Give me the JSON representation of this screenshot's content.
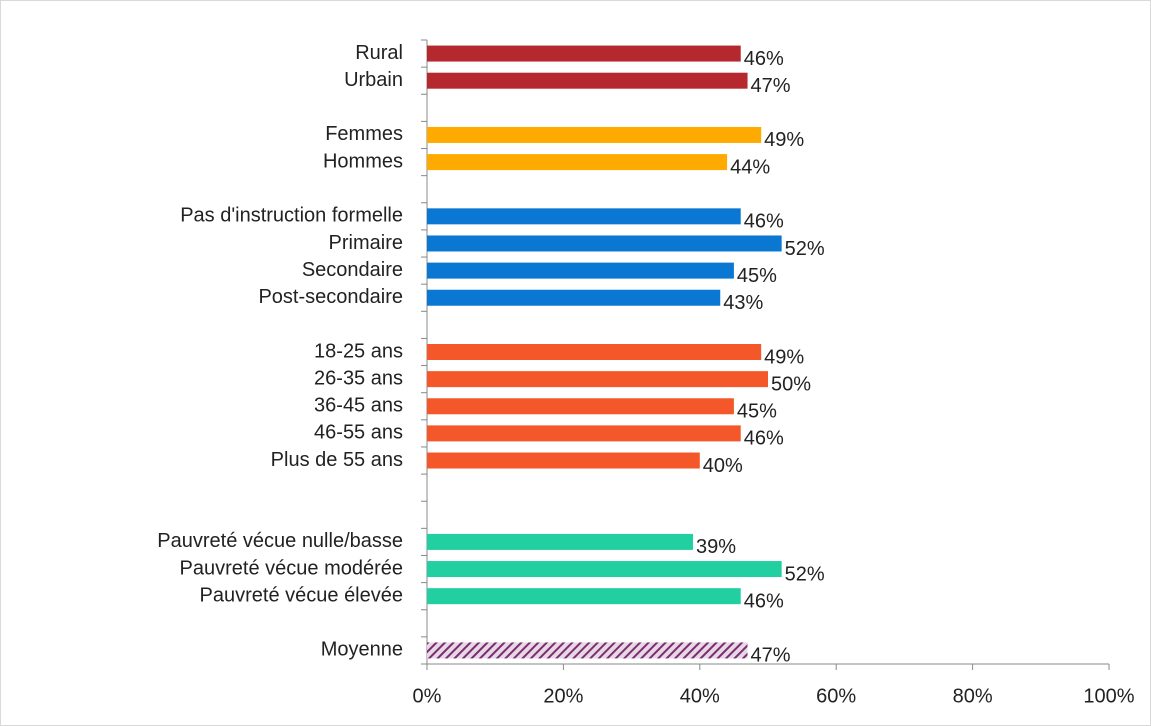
{
  "chart_data": {
    "type": "barh",
    "categories": [
      "Rural",
      "Urbain",
      null,
      "Femmes",
      "Hommes",
      null,
      "Pas d'instruction formelle",
      "Primaire",
      "Secondaire",
      "Post-secondaire",
      null,
      "18-25 ans",
      "26-35 ans",
      "36-45 ans",
      "46-55 ans",
      "Plus de 55 ans",
      null,
      null,
      "Pauvreté vécue nulle/basse",
      "Pauvreté vécue modérée",
      "Pauvreté vécue élevée",
      null,
      "Moyenne"
    ],
    "values": [
      46,
      47,
      null,
      49,
      44,
      null,
      46,
      52,
      45,
      43,
      null,
      49,
      50,
      45,
      46,
      40,
      null,
      null,
      39,
      52,
      46,
      null,
      47
    ],
    "value_labels": [
      "46%",
      "47%",
      null,
      "49%",
      "44%",
      null,
      "46%",
      "52%",
      "45%",
      "43%",
      null,
      "49%",
      "50%",
      "45%",
      "46%",
      "40%",
      null,
      null,
      "39%",
      "52%",
      "46%",
      null,
      "47%"
    ],
    "colors": [
      "#b5282e",
      "#b5282e",
      null,
      "#ffaa00",
      "#ffaa00",
      null,
      "#0a78d2",
      "#0a78d2",
      "#0a78d2",
      "#0a78d2",
      null,
      "#f4572a",
      "#f4572a",
      "#f4572a",
      "#f4572a",
      "#f4572a",
      null,
      null,
      "#22cfa0",
      "#22cfa0",
      "#22cfa0",
      null,
      "#7b2d6f"
    ],
    "hatched": [
      false,
      false,
      null,
      false,
      false,
      null,
      false,
      false,
      false,
      false,
      null,
      false,
      false,
      false,
      false,
      false,
      null,
      null,
      false,
      false,
      false,
      null,
      true
    ],
    "xlim": [
      0,
      100
    ],
    "xticks": [
      {
        "value": 0,
        "label": "0%"
      },
      {
        "value": 20,
        "label": "20%"
      },
      {
        "value": 40,
        "label": "40%"
      },
      {
        "value": 60,
        "label": "60%"
      },
      {
        "value": 80,
        "label": "80%"
      },
      {
        "value": 100,
        "label": "100%"
      }
    ],
    "grid": false
  }
}
